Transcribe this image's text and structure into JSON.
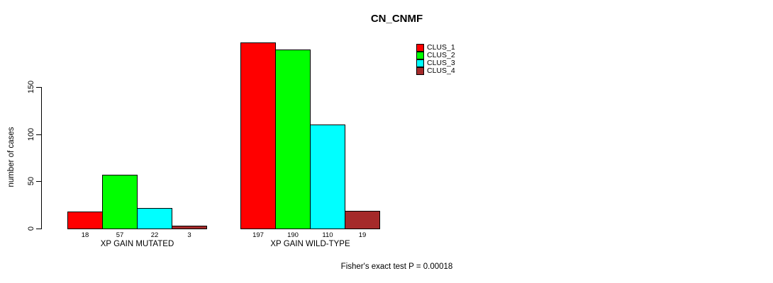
{
  "title": "CN_CNMF",
  "footnote": "Fisher's exact test P = 0.00018",
  "chart_data": {
    "type": "bar",
    "categories": [
      "XP GAIN MUTATED",
      "XP GAIN WILD-TYPE"
    ],
    "series": [
      {
        "name": "CLUS_1",
        "color": "#FF0000",
        "values": [
          18,
          197
        ]
      },
      {
        "name": "CLUS_2",
        "color": "#00FF00",
        "values": [
          57,
          190
        ]
      },
      {
        "name": "CLUS_3",
        "color": "#00FFFF",
        "values": [
          22,
          110
        ]
      },
      {
        "name": "CLUS_4",
        "color": "#A52A2A",
        "values": [
          3,
          19
        ]
      }
    ],
    "ylabel": "number of cases",
    "yticks": [
      0,
      50,
      100,
      150
    ],
    "ylim": [
      0,
      200
    ],
    "grid": false,
    "legend_position": "top-right",
    "bar_value_labels": true
  }
}
